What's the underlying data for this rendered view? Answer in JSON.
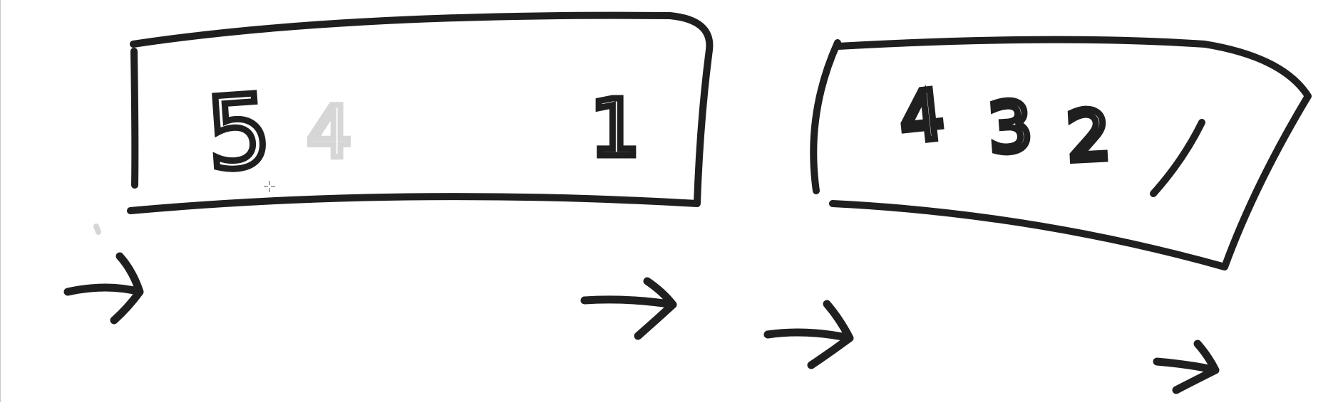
{
  "colors": {
    "background": "#ffffff",
    "ink": "#1f1f1f",
    "faded_ink": "#d6d6d6",
    "edge": "#c8c8c8"
  },
  "boxes": [
    {
      "id": "left",
      "digits": [
        "5",
        "4",
        "",
        "1"
      ]
    },
    {
      "id": "right",
      "digits": [
        "4",
        "3",
        "2",
        "1"
      ]
    }
  ],
  "arrows": {
    "count": 4,
    "direction": "right"
  },
  "cursor": {
    "icon": "crosshair-icon"
  }
}
